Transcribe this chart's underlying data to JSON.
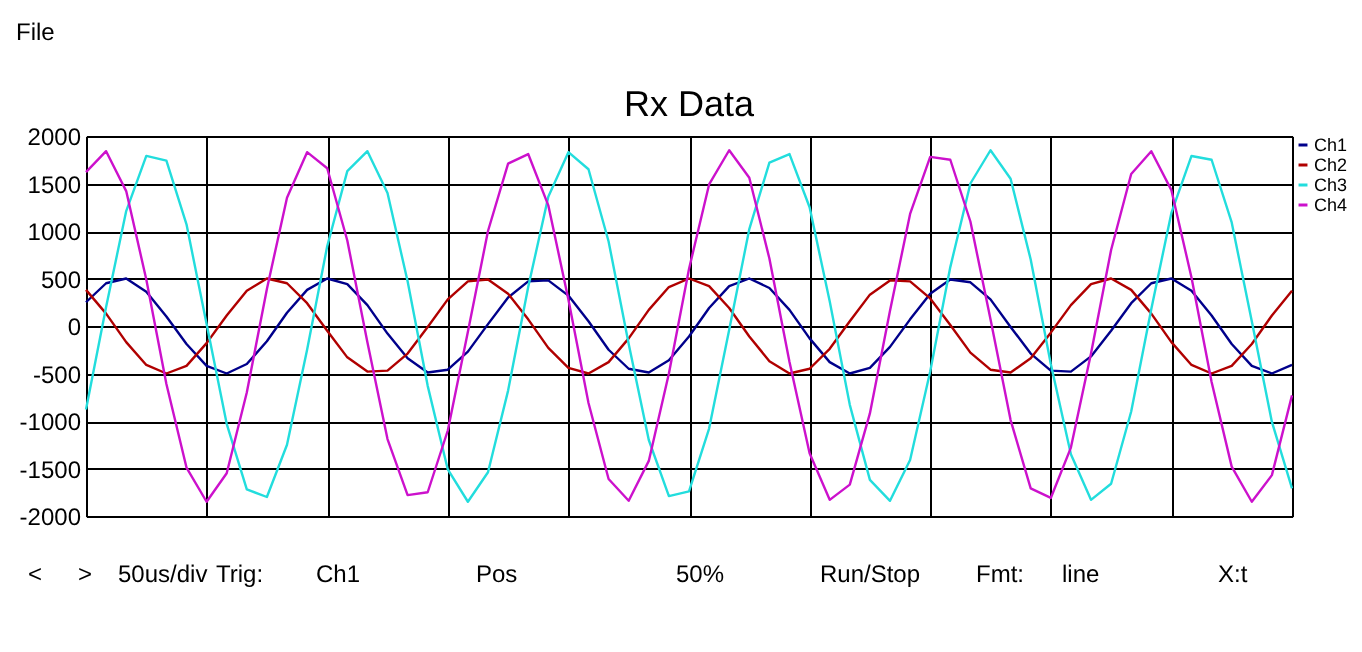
{
  "chart_data": {
    "type": "line",
    "title": "Rx Data",
    "categories": [
      null,
      null,
      null,
      null,
      null,
      null,
      null,
      null,
      null,
      null,
      null,
      null,
      null,
      null,
      null,
      null,
      null,
      null,
      null,
      null,
      null,
      null,
      null,
      null,
      null,
      null,
      null,
      null,
      null,
      null,
      null,
      null,
      null,
      null,
      null,
      null,
      null,
      null,
      null,
      null,
      null,
      null,
      null,
      null,
      null,
      null,
      null,
      null,
      null,
      null,
      null,
      null,
      null,
      null,
      null,
      null,
      null,
      null,
      null,
      null,
      null
    ],
    "ylim": [
      -2000,
      2000
    ],
    "yticks": [
      -2000,
      -1500,
      -1000,
      -500,
      0,
      500,
      1000,
      1500,
      2000
    ],
    "tick_labels": "y",
    "grid": true,
    "legend": "top right",
    "line_style": "solid",
    "series": [
      {
        "name": "Ch1",
        "color": "#00008b",
        "values": [
          250,
          450,
          500,
          360,
          100,
          -190,
          -420,
          -500,
          -400,
          -160,
          140,
          380,
          500,
          440,
          220,
          -80,
          -340,
          -490,
          -460,
          -270,
          20,
          300,
          470,
          480,
          320,
          50,
          -250,
          -450,
          -490,
          -360,
          -110,
          190,
          420,
          500,
          400,
          170,
          -130,
          -380,
          -500,
          -440,
          -220,
          70,
          340,
          490,
          460,
          280,
          -10,
          -290,
          -470,
          -480,
          -320,
          -50,
          240,
          450,
          500,
          370,
          110,
          -190,
          -420,
          -500,
          -410
        ]
      },
      {
        "name": "Ch2",
        "color": "#b00000",
        "values": [
          380,
          130,
          -170,
          -410,
          -500,
          -420,
          -180,
          110,
          370,
          500,
          450,
          240,
          -50,
          -330,
          -480,
          -470,
          -290,
          -10,
          280,
          470,
          490,
          340,
          70,
          -230,
          -440,
          -500,
          -380,
          -130,
          170,
          410,
          500,
          420,
          190,
          -110,
          -370,
          -500,
          -450,
          -240,
          50,
          330,
          480,
          470,
          290,
          10,
          -280,
          -460,
          -490,
          -340,
          -70,
          220,
          440,
          500,
          380,
          130,
          -170,
          -410,
          -500,
          -420,
          -190,
          110,
          370
        ]
      },
      {
        "name": "Ch3",
        "color": "#22dddd",
        "values": [
          -880,
          200,
          1210,
          1790,
          1740,
          1070,
          20,
          -1030,
          -1720,
          -1800,
          -1250,
          -250,
          840,
          1630,
          1840,
          1400,
          470,
          -630,
          -1510,
          -1850,
          -1540,
          -680,
          410,
          1360,
          1830,
          1650,
          890,
          -190,
          -1200,
          -1790,
          -1740,
          -1080,
          -40,
          1020,
          1720,
          1810,
          1250,
          260,
          -830,
          -1620,
          -1840,
          -1410,
          -480,
          620,
          1500,
          1850,
          1550,
          700,
          -400,
          -1350,
          -1830,
          -1660,
          -900,
          180,
          1190,
          1790,
          1750,
          1090,
          50,
          -1010,
          -1710
        ]
      },
      {
        "name": "Ch4",
        "color": "#cc11cc",
        "values": [
          1620,
          1840,
          1420,
          490,
          -610,
          -1490,
          -1850,
          -1550,
          -700,
          390,
          1350,
          1830,
          1660,
          900,
          -170,
          -1190,
          -1780,
          -1750,
          -1100,
          -60,
          1000,
          1710,
          1810,
          1270,
          280,
          -810,
          -1610,
          -1840,
          -1420,
          -500,
          600,
          1490,
          1850,
          1560,
          710,
          -380,
          -1340,
          -1830,
          -1670,
          -920,
          160,
          1180,
          1780,
          1750,
          1100,
          70,
          -990,
          -1710,
          -1810,
          -1280,
          -290,
          800,
          1600,
          1840,
          1430,
          510,
          -590,
          -1480,
          -1850,
          -1570,
          -730
        ]
      }
    ],
    "annotations": [
      "File",
      "<",
      ">",
      "50us/div",
      "Trig:",
      "Ch1",
      "Pos",
      "50%",
      "Run/Stop",
      "Fmt:",
      "line",
      "X:t"
    ]
  }
}
